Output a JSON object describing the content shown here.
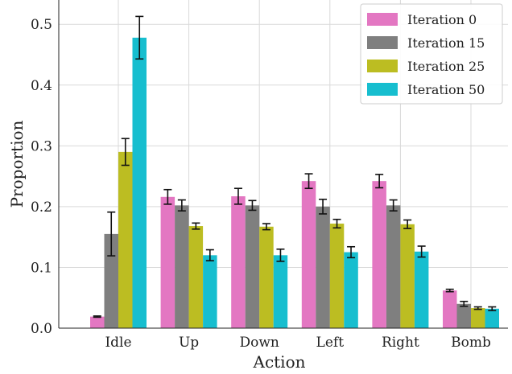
{
  "chart_data": {
    "type": "bar",
    "xlabel": "Action",
    "ylabel": "Proportion",
    "ylim": [
      0,
      0.54
    ],
    "yticks": [
      0.0,
      0.1,
      0.2,
      0.3,
      0.4,
      0.5
    ],
    "ytick_labels": [
      "0.0",
      "0.1",
      "0.2",
      "0.3",
      "0.4",
      "0.5"
    ],
    "grid": true,
    "legend_position": "top-right",
    "categories": [
      "Idle",
      "Up",
      "Down",
      "Left",
      "Right",
      "Bomb"
    ],
    "series": [
      {
        "name": "Iteration 0",
        "color": "#e377c2",
        "values": [
          0.019,
          0.216,
          0.217,
          0.242,
          0.242,
          0.062
        ],
        "errors": [
          0.001,
          0.012,
          0.013,
          0.012,
          0.011,
          0.002
        ]
      },
      {
        "name": "Iteration 15",
        "color": "#7f7f7f",
        "values": [
          0.155,
          0.202,
          0.202,
          0.2,
          0.202,
          0.04
        ],
        "errors": [
          0.036,
          0.009,
          0.008,
          0.012,
          0.009,
          0.004
        ]
      },
      {
        "name": "Iteration 25",
        "color": "#bcbd22",
        "values": [
          0.29,
          0.168,
          0.167,
          0.172,
          0.171,
          0.033
        ],
        "errors": [
          0.022,
          0.005,
          0.005,
          0.007,
          0.007,
          0.002
        ]
      },
      {
        "name": "Iteration 50",
        "color": "#17becf",
        "values": [
          0.478,
          0.12,
          0.12,
          0.125,
          0.126,
          0.032
        ],
        "errors": [
          0.035,
          0.009,
          0.01,
          0.009,
          0.009,
          0.003
        ]
      }
    ]
  }
}
